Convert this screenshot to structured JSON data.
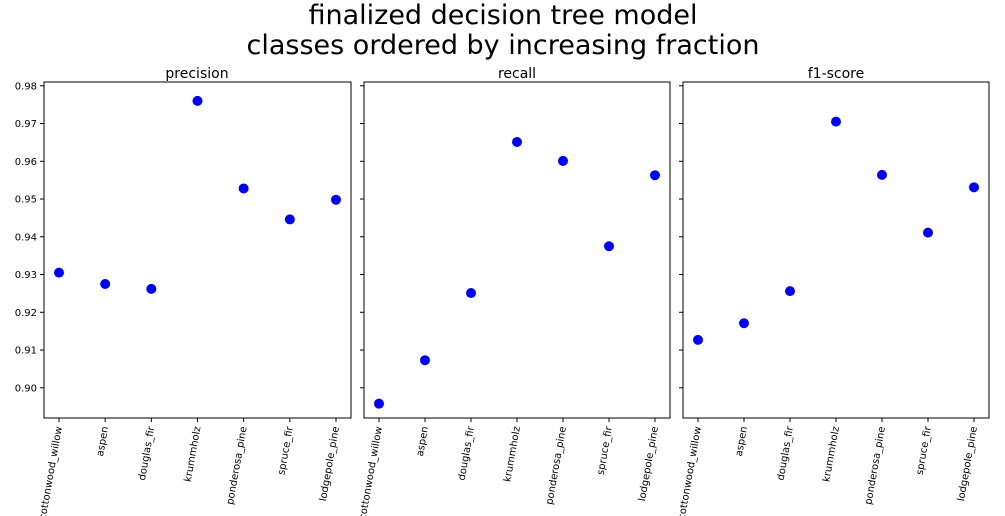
{
  "figure": {
    "suptitle_line1": "finalized decision tree model",
    "suptitle_line2": "classes ordered by increasing fraction"
  },
  "chart_data": [
    {
      "type": "scatter",
      "title": "precision",
      "categories": [
        "cottonwood_willow",
        "aspen",
        "douglas_fir",
        "krummholz",
        "ponderosa_pine",
        "spruce_fir",
        "lodgepole_pine"
      ],
      "values": [
        0.9305,
        0.9275,
        0.9262,
        0.976,
        0.9528,
        0.9446,
        0.9498
      ],
      "ylim": [
        0.892,
        0.981
      ],
      "yticks": [
        0.9,
        0.91,
        0.92,
        0.93,
        0.94,
        0.95,
        0.96,
        0.97,
        0.98
      ],
      "ytick_labels": [
        "0.90",
        "0.91",
        "0.92",
        "0.93",
        "0.94",
        "0.95",
        "0.96",
        "0.97",
        "0.98"
      ],
      "show_ytick_labels": true,
      "marker_color": "#0000ff",
      "grid": false
    },
    {
      "type": "scatter",
      "title": "recall",
      "categories": [
        "cottonwood_willow",
        "aspen",
        "douglas_fir",
        "krummholz",
        "ponderosa_pine",
        "spruce_fir",
        "lodgepole_pine"
      ],
      "values": [
        0.8958,
        0.9073,
        0.9251,
        0.9651,
        0.9601,
        0.9375,
        0.9563
      ],
      "ylim": [
        0.892,
        0.981
      ],
      "yticks": [
        0.9,
        0.91,
        0.92,
        0.93,
        0.94,
        0.95,
        0.96,
        0.97,
        0.98
      ],
      "ytick_labels": [
        "0.90",
        "0.91",
        "0.92",
        "0.93",
        "0.94",
        "0.95",
        "0.96",
        "0.97",
        "0.98"
      ],
      "show_ytick_labels": false,
      "marker_color": "#0000ff",
      "grid": false
    },
    {
      "type": "scatter",
      "title": "f1-score",
      "categories": [
        "cottonwood_willow",
        "aspen",
        "douglas_fir",
        "krummholz",
        "ponderosa_pine",
        "spruce_fir",
        "lodgepole_pine"
      ],
      "values": [
        0.9127,
        0.9171,
        0.9256,
        0.9705,
        0.9564,
        0.9411,
        0.9531
      ],
      "ylim": [
        0.892,
        0.981
      ],
      "yticks": [
        0.9,
        0.91,
        0.92,
        0.93,
        0.94,
        0.95,
        0.96,
        0.97,
        0.98
      ],
      "ytick_labels": [
        "0.90",
        "0.91",
        "0.92",
        "0.93",
        "0.94",
        "0.95",
        "0.96",
        "0.97",
        "0.98"
      ],
      "show_ytick_labels": false,
      "marker_color": "#0000ff",
      "grid": false
    }
  ]
}
